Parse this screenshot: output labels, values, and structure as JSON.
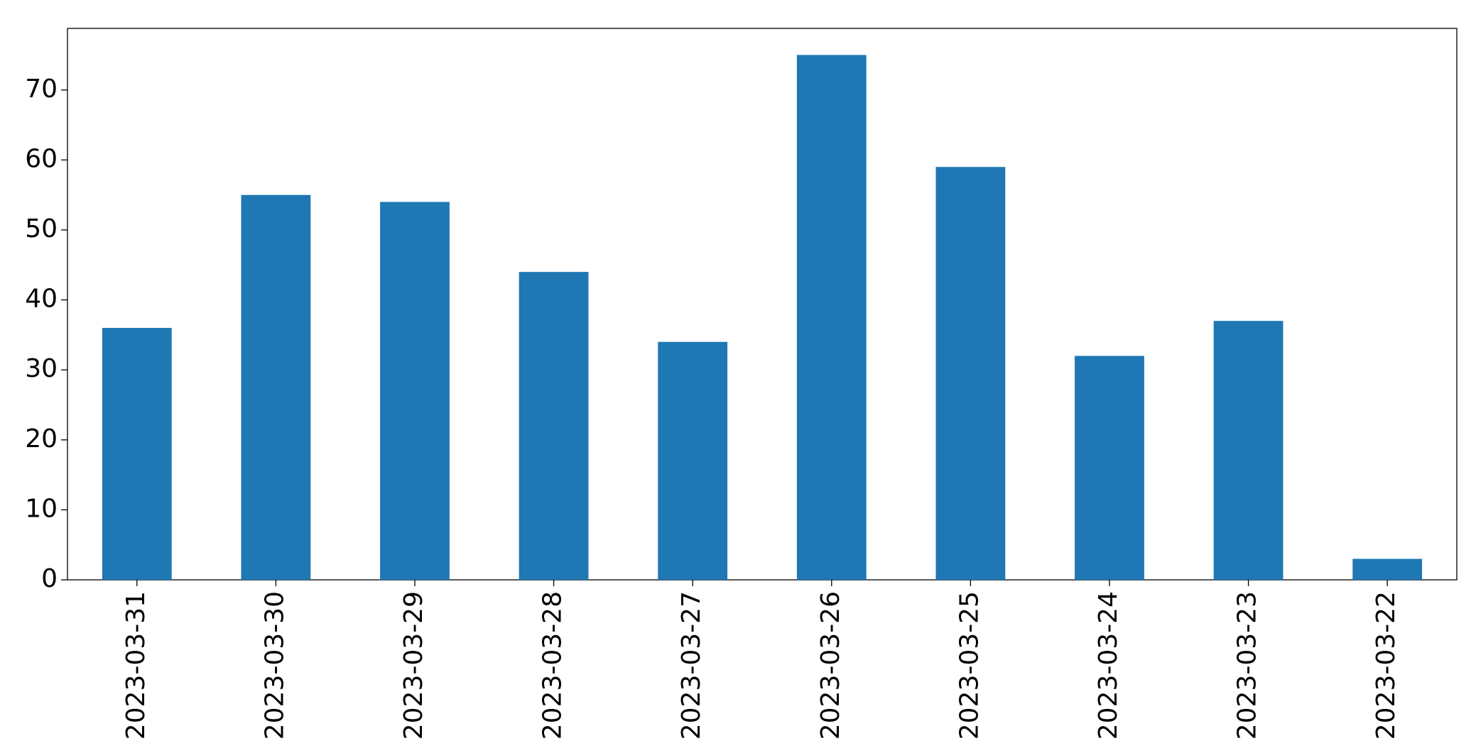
{
  "chart_data": {
    "type": "bar",
    "categories": [
      "2023-03-31",
      "2023-03-30",
      "2023-03-29",
      "2023-03-28",
      "2023-03-27",
      "2023-03-26",
      "2023-03-25",
      "2023-03-24",
      "2023-03-23",
      "2023-03-22"
    ],
    "values": [
      36,
      55,
      54,
      44,
      34,
      75,
      59,
      32,
      37,
      3
    ],
    "color": "#1f77b4",
    "ylim": [
      0,
      78.8
    ],
    "yticks": [
      0,
      10,
      20,
      30,
      40,
      50,
      60,
      70
    ],
    "grid": false
  }
}
